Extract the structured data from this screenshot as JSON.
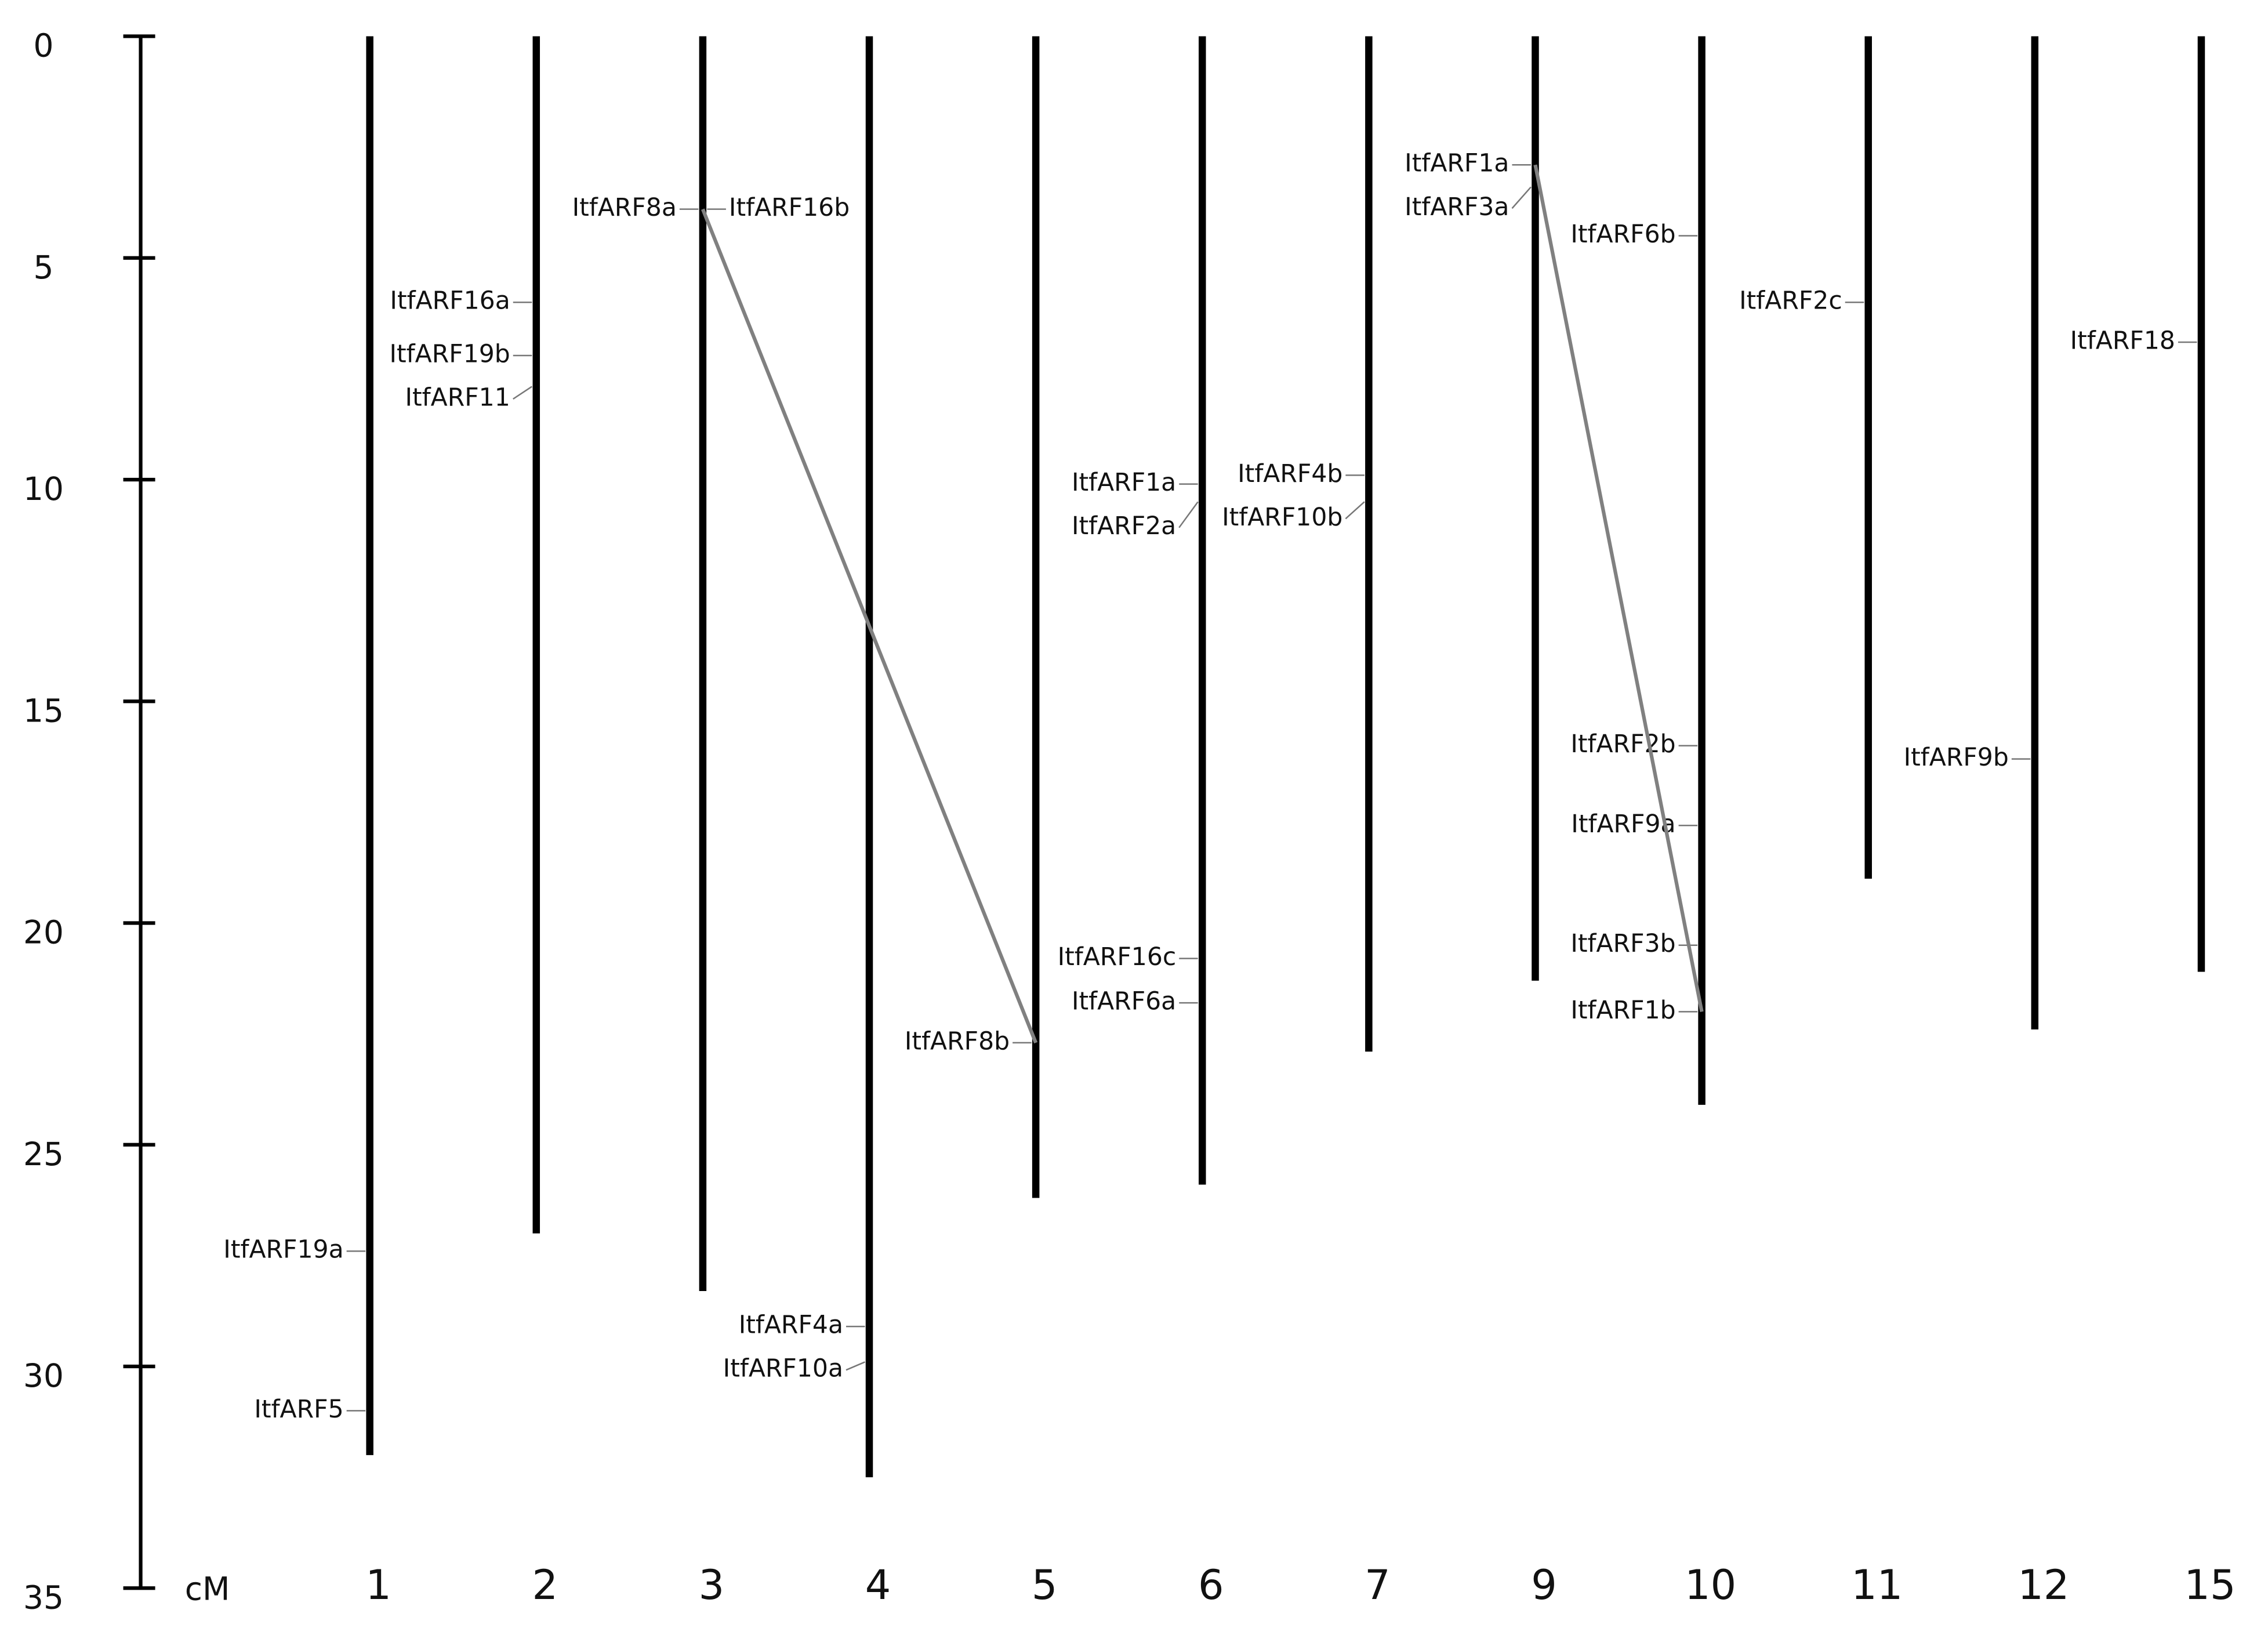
{
  "chart_data": {
    "type": "chromosome-map",
    "y_label": "cM",
    "ylim": [
      0,
      35
    ],
    "yticks": [
      0,
      5,
      10,
      15,
      20,
      25,
      30,
      35
    ],
    "chromosome_color": "#000000",
    "link_color": "#808080",
    "chromosomes": [
      {
        "name": "1",
        "length": 32.0,
        "genes": [
          {
            "label": "ItfARF19a",
            "position": 27.4,
            "side": "left"
          },
          {
            "label": "ItfARF5",
            "position": 31.0,
            "side": "left"
          }
        ]
      },
      {
        "name": "2",
        "length": 27.0,
        "genes": [
          {
            "label": "ItfARF16a",
            "position": 6.0,
            "side": "left"
          },
          {
            "label": "ItfARF19b",
            "position": 7.2,
            "side": "left"
          },
          {
            "label": "ItfARF11",
            "position": 7.9,
            "side": "left"
          }
        ]
      },
      {
        "name": "3",
        "length": 28.3,
        "genes": [
          {
            "label": "ItfARF8a",
            "position": 3.9,
            "side": "left"
          },
          {
            "label": "ItfARF16b",
            "position": 3.9,
            "side": "right"
          }
        ]
      },
      {
        "name": "4",
        "length": 32.5,
        "genes": [
          {
            "label": "ItfARF4a",
            "position": 29.1,
            "side": "left"
          },
          {
            "label": "ItfARF10a",
            "position": 29.9,
            "side": "left"
          }
        ]
      },
      {
        "name": "5",
        "length": 26.2,
        "genes": [
          {
            "label": "ItfARF8b",
            "position": 22.7,
            "side": "left"
          }
        ]
      },
      {
        "name": "6",
        "length": 25.9,
        "genes": [
          {
            "label": "ItfARF1a",
            "position": 10.1,
            "side": "left"
          },
          {
            "label": "ItfARF2a",
            "position": 10.5,
            "side": "left"
          },
          {
            "label": "ItfARF16c",
            "position": 20.8,
            "side": "left"
          },
          {
            "label": "ItfARF6a",
            "position": 21.8,
            "side": "left"
          }
        ]
      },
      {
        "name": "7",
        "length": 22.9,
        "genes": [
          {
            "label": "ItfARF4b",
            "position": 9.9,
            "side": "left"
          },
          {
            "label": "ItfARF10b",
            "position": 10.5,
            "side": "left"
          }
        ]
      },
      {
        "name": "9",
        "length": 21.3,
        "genes": [
          {
            "label": "ItfARF1a",
            "position": 2.9,
            "side": "left"
          },
          {
            "label": "ItfARF3a",
            "position": 3.4,
            "side": "left"
          }
        ]
      },
      {
        "name": "10",
        "length": 24.1,
        "genes": [
          {
            "label": "ItfARF6b",
            "position": 4.5,
            "side": "left"
          },
          {
            "label": "ItfARF2b",
            "position": 16.0,
            "side": "left"
          },
          {
            "label": "ItfARF9a",
            "position": 17.8,
            "side": "left"
          },
          {
            "label": "ItfARF3b",
            "position": 20.5,
            "side": "left"
          },
          {
            "label": "ItfARF1b",
            "position": 22.0,
            "side": "left"
          }
        ]
      },
      {
        "name": "11",
        "length": 19.0,
        "genes": [
          {
            "label": "ItfARF2c",
            "position": 6.0,
            "side": "left"
          }
        ]
      },
      {
        "name": "12",
        "length": 22.4,
        "genes": [
          {
            "label": "ItfARF9b",
            "position": 16.3,
            "side": "left"
          }
        ]
      },
      {
        "name": "15",
        "length": 21.1,
        "genes": [
          {
            "label": "ItfARF18",
            "position": 6.9,
            "side": "left"
          }
        ]
      }
    ],
    "links": [
      [
        [
          2,
          0
        ],
        [
          4,
          0
        ]
      ],
      [
        [
          7,
          0
        ],
        [
          8,
          4
        ]
      ]
    ]
  }
}
